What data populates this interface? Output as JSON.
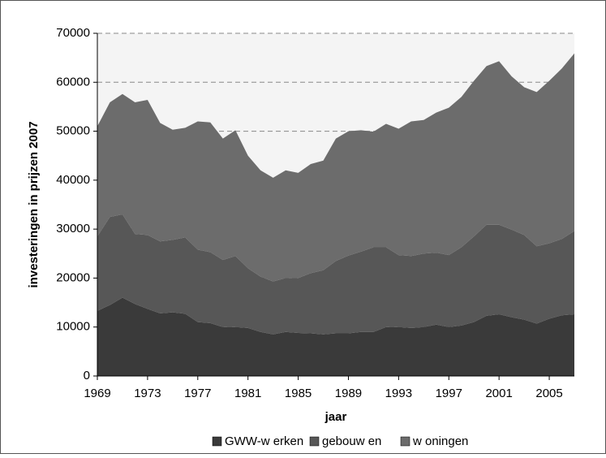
{
  "chart_data": {
    "type": "stacked_area",
    "x": [
      1969,
      1970,
      1971,
      1972,
      1973,
      1974,
      1975,
      1976,
      1977,
      1978,
      1979,
      1980,
      1981,
      1982,
      1983,
      1984,
      1985,
      1986,
      1987,
      1988,
      1989,
      1990,
      1991,
      1992,
      1993,
      1994,
      1995,
      1996,
      1997,
      1998,
      1999,
      2000,
      2001,
      2002,
      2003,
      2004,
      2005,
      2006,
      2007
    ],
    "series": [
      {
        "name": "GWW-w erken",
        "color": "#3a3a3a",
        "values": [
          13300,
          14500,
          16000,
          14700,
          13700,
          12800,
          13000,
          12700,
          11000,
          10800,
          10000,
          10000,
          9800,
          9000,
          8500,
          9000,
          8800,
          8700,
          8500,
          8700,
          8700,
          9000,
          9000,
          10000,
          10000,
          9800,
          10000,
          10500,
          10000,
          10300,
          11000,
          12300,
          12600,
          12000,
          11500,
          10700,
          11700,
          12400,
          12600
        ]
      },
      {
        "name": "gebouw en",
        "color": "#575757",
        "values": [
          15200,
          18000,
          17000,
          14300,
          15100,
          14700,
          14800,
          15600,
          14800,
          14500,
          13700,
          14500,
          12200,
          11300,
          10800,
          11000,
          11200,
          12300,
          13100,
          14800,
          15900,
          16400,
          17300,
          16300,
          14700,
          14700,
          15000,
          14700,
          14700,
          16000,
          17500,
          18600,
          18300,
          17900,
          17300,
          15800,
          15400,
          15600,
          17000
        ]
      },
      {
        "name": "w oningen",
        "color": "#6c6c6c",
        "values": [
          22500,
          23400,
          24600,
          26900,
          27600,
          24200,
          22500,
          22400,
          26200,
          26500,
          24800,
          25700,
          23000,
          21700,
          21200,
          22000,
          21500,
          22300,
          22400,
          25000,
          25400,
          24800,
          23600,
          25200,
          25800,
          27500,
          27300,
          28600,
          30100,
          30700,
          31800,
          32400,
          33400,
          31300,
          30200,
          31500,
          33200,
          34800,
          36300
        ]
      }
    ],
    "x_label": "jaar",
    "y_label": "investeringen in prijzen 2007",
    "xlim": [
      1969,
      2007
    ],
    "xticks": [
      1969,
      1973,
      1977,
      1981,
      1985,
      1989,
      1993,
      1997,
      2001,
      2005
    ],
    "ylim": [
      0,
      70000
    ],
    "yticks": [
      0,
      10000,
      20000,
      30000,
      40000,
      50000,
      60000,
      70000
    ],
    "grid": true,
    "legend": "bottom"
  }
}
